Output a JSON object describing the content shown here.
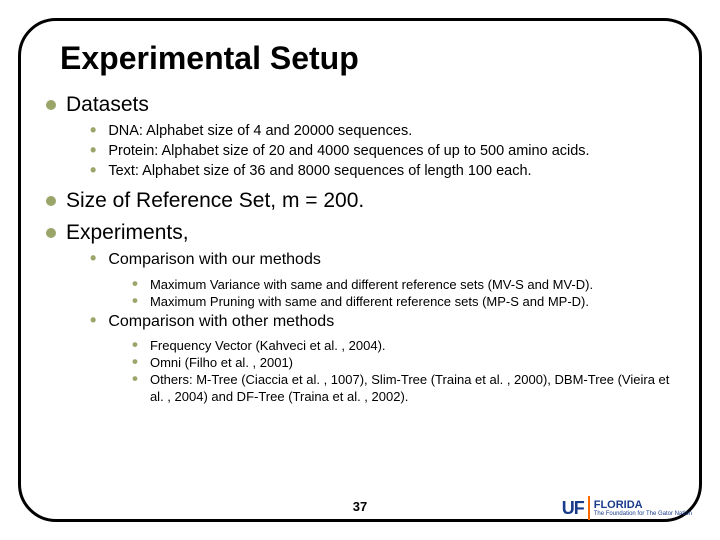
{
  "title": "Experimental Setup",
  "bullets": {
    "datasets": {
      "label": "Datasets",
      "items": [
        "DNA: Alphabet size of 4 and 20000 sequences.",
        "Protein: Alphabet size of 20 and 4000 sequences of up to 500 amino acids.",
        "Text: Alphabet size of 36 and 8000 sequences of length 100 each."
      ]
    },
    "refset": {
      "label": "Size of Reference Set, m = 200."
    },
    "experiments": {
      "label": "Experiments,",
      "comp_our": {
        "label": "Comparison with our methods",
        "items": [
          "Maximum Variance with same and different reference sets (MV-S and MV-D).",
          "Maximum Pruning with same and different reference sets (MP-S and MP-D)."
        ]
      },
      "comp_other": {
        "label": "Comparison with other methods",
        "items": [
          "Frequency Vector (Kahveci et al. , 2004).",
          "Omni (Filho et al. , 2001)",
          "Others: M-Tree (Ciaccia et al. , 1007), Slim-Tree (Traina et al. , 2000), DBM-Tree (Vieira et al. , 2004) and DF-Tree (Traina et al. , 2002)."
        ]
      }
    }
  },
  "page_number": "37",
  "logo": {
    "uf": "UF",
    "florida": "FLORIDA",
    "tagline": "The Foundation for The Gator Nation"
  },
  "colors": {
    "bullet_olive": "#9aa56a",
    "text": "#000000",
    "logo_blue": "#1a3b8c",
    "logo_orange": "#ff6a00",
    "background": "#ffffff"
  },
  "typography": {
    "title_fontsize": 32,
    "main_fontsize": 21,
    "sub_fontsize_small": 14.5,
    "sub_fontsize_med": 16,
    "subsub_fontsize": 13,
    "pagenum_fontsize": 13
  },
  "layout": {
    "slide_width": 720,
    "slide_height": 540,
    "border_radius": 38,
    "border_width": 3
  }
}
